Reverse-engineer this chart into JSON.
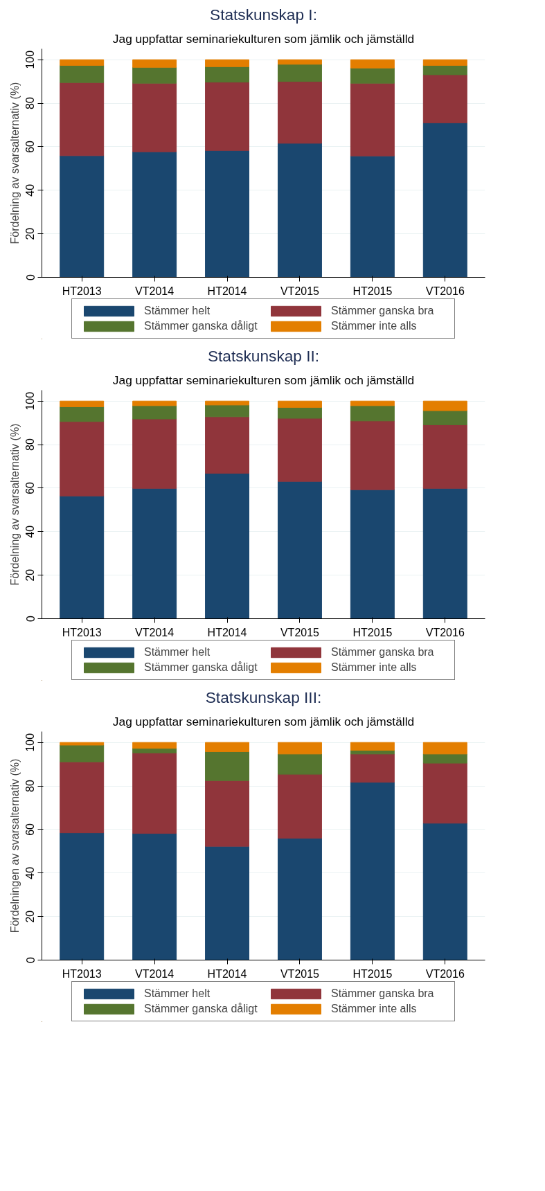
{
  "chart_data": [
    {
      "type": "bar",
      "stacked": true,
      "title": "Statskunskap I:",
      "subtitle": "Jag uppfattar seminariekulturen som jämlik och jämställd",
      "ylabel": "Fördelning av svarsalternativ (%)",
      "categories": [
        "HT2013",
        "VT2014",
        "HT2014",
        "VT2015",
        "HT2015",
        "VT2016"
      ],
      "ylim": [
        0,
        105
      ],
      "yticks": [
        0,
        20,
        40,
        60,
        80,
        100
      ],
      "grid": "y",
      "legend": "bottom",
      "series": [
        {
          "name": "Stämmer helt",
          "color": "#1a476f",
          "values": [
            55.9,
            57.7,
            58.3,
            61.6,
            55.8,
            71.0
          ]
        },
        {
          "name": "Stämmer ganska bra",
          "color": "#90353b",
          "values": [
            33.6,
            31.5,
            31.4,
            28.4,
            33.4,
            22.1
          ]
        },
        {
          "name": "Stämmer ganska dåligt",
          "color": "#55752f",
          "values": [
            7.9,
            7.3,
            7.1,
            7.9,
            7.0,
            4.3
          ]
        },
        {
          "name": "Stämmer inte alls",
          "color": "#e37e00",
          "values": [
            2.6,
            3.5,
            3.2,
            2.1,
            3.8,
            2.6
          ]
        }
      ]
    },
    {
      "type": "bar",
      "stacked": true,
      "title": "Statskunskap II:",
      "subtitle": "Jag uppfattar seminariekulturen som jämlik och jämställd",
      "ylabel": "Fördelning av svarsalternativ (%)",
      "categories": [
        "HT2013",
        "VT2014",
        "HT2014",
        "VT2015",
        "HT2015",
        "VT2016"
      ],
      "ylim": [
        0,
        105
      ],
      "yticks": [
        0,
        20,
        40,
        60,
        80,
        100
      ],
      "grid": "y",
      "legend": "bottom",
      "series": [
        {
          "name": "Stämmer helt",
          "color": "#1a476f",
          "values": [
            56.4,
            59.9,
            66.8,
            63.1,
            59.3,
            59.9
          ]
        },
        {
          "name": "Stämmer ganska bra",
          "color": "#90353b",
          "values": [
            34.2,
            31.9,
            26.0,
            29.0,
            31.6,
            29.2
          ]
        },
        {
          "name": "Stämmer ganska dåligt",
          "color": "#55752f",
          "values": [
            6.8,
            6.1,
            5.4,
            5.0,
            7.0,
            6.5
          ]
        },
        {
          "name": "Stämmer inte alls",
          "color": "#e37e00",
          "values": [
            2.6,
            2.1,
            1.8,
            2.9,
            2.1,
            4.4
          ]
        }
      ]
    },
    {
      "type": "bar",
      "stacked": true,
      "title": "Statskunskap III:",
      "subtitle": "Jag uppfattar seminariekulturen som jämlik och jämställd",
      "ylabel": "Fördelningen av svarsalternativ (%)",
      "categories": [
        "HT2013",
        "VT2014",
        "HT2014",
        "VT2015",
        "HT2015",
        "VT2016"
      ],
      "ylim": [
        0,
        105
      ],
      "yticks": [
        0,
        20,
        40,
        60,
        80,
        100
      ],
      "grid": "y",
      "legend": "bottom",
      "series": [
        {
          "name": "Stämmer helt",
          "color": "#1a476f",
          "values": [
            58.5,
            58.2,
            52.3,
            56.0,
            81.7,
            62.9
          ]
        },
        {
          "name": "Stämmer ganska bra",
          "color": "#90353b",
          "values": [
            32.6,
            37.0,
            30.2,
            29.4,
            13.0,
            27.6
          ]
        },
        {
          "name": "Stämmer ganska dåligt",
          "color": "#55752f",
          "values": [
            7.7,
            2.1,
            13.3,
            9.3,
            1.7,
            4.2
          ]
        },
        {
          "name": "Stämmer inte alls",
          "color": "#e37e00",
          "values": [
            1.2,
            2.7,
            4.2,
            5.3,
            3.6,
            5.3
          ]
        }
      ]
    }
  ]
}
